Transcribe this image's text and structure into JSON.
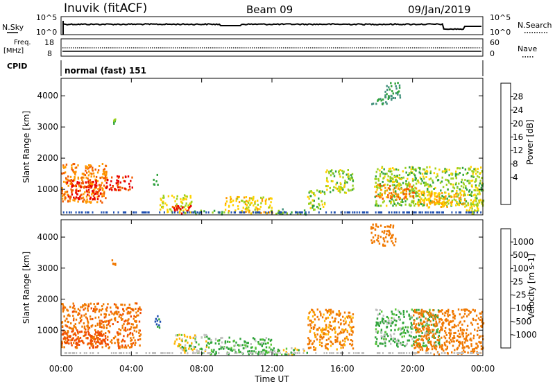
{
  "header": {
    "station": "Inuvik (fitACF)",
    "beam": "Beam 09",
    "date": "09/Jan/2019"
  },
  "sky_panel": {
    "left_label": "N.Sky",
    "right_label": "N.Search",
    "tick_top": "10^5",
    "tick_bottom": "10^0"
  },
  "freq_panel": {
    "left_label_1": "Freq.",
    "left_label_2": "[MHz]",
    "left_tick_top": "18",
    "left_tick_bottom": "8",
    "right_label": "Nave",
    "right_tick_top": "60",
    "right_tick_bottom": "0"
  },
  "cpid_panel": {
    "label": "CPID",
    "value": "normal (fast) 151"
  },
  "chart_data": [
    {
      "type": "heatmap",
      "name": "power",
      "ylabel": "Slant Range [km]",
      "colorbar_label": "Power [dB]",
      "colorbar_ticks": [
        "28",
        "24",
        "20",
        "16",
        "12",
        "8",
        "4"
      ],
      "colors": [
        "#e80000",
        "#f25a00",
        "#ff9a00",
        "#ffd200",
        "#9bd11f",
        "#2fa33a",
        "#3f8f7a",
        "#1f4fb0",
        "#1530ff"
      ],
      "y_ticks": [
        "1000",
        "2000",
        "3000",
        "4000"
      ],
      "ylim": [
        180,
        4560
      ],
      "regions": [
        {
          "x0": 0.0,
          "x1": 2.6,
          "y0": 600,
          "y1": 1850,
          "value": 24
        },
        {
          "x0": 0.3,
          "x1": 2.3,
          "y0": 700,
          "y1": 1300,
          "value": 30
        },
        {
          "x0": 2.4,
          "x1": 4.1,
          "y0": 1000,
          "y1": 1450,
          "value": 28
        },
        {
          "x0": 2.8,
          "x1": 3.1,
          "y0": 3100,
          "y1": 3300,
          "value": 12
        },
        {
          "x0": 5.2,
          "x1": 5.5,
          "y0": 1150,
          "y1": 1500,
          "value": 10
        },
        {
          "x0": 5.6,
          "x1": 7.4,
          "y0": 250,
          "y1": 850,
          "value": 16
        },
        {
          "x0": 6.3,
          "x1": 7.4,
          "y0": 250,
          "y1": 500,
          "value": 28
        },
        {
          "x0": 7.4,
          "x1": 9.3,
          "y0": 220,
          "y1": 350,
          "value": 10
        },
        {
          "x0": 9.3,
          "x1": 12.0,
          "y0": 250,
          "y1": 800,
          "value": 18
        },
        {
          "x0": 12.0,
          "x1": 14.0,
          "y0": 220,
          "y1": 400,
          "value": 10
        },
        {
          "x0": 14.0,
          "x1": 15.0,
          "y0": 350,
          "y1": 1000,
          "value": 14
        },
        {
          "x0": 15.0,
          "x1": 16.6,
          "y0": 900,
          "y1": 1650,
          "value": 14
        },
        {
          "x0": 17.6,
          "x1": 18.6,
          "y0": 3750,
          "y1": 3950,
          "value": 8
        },
        {
          "x0": 18.4,
          "x1": 19.3,
          "y0": 3900,
          "y1": 4450,
          "value": 8
        },
        {
          "x0": 17.8,
          "x1": 24.0,
          "y0": 500,
          "y1": 1750,
          "value": 14
        },
        {
          "x0": 17.8,
          "x1": 20.2,
          "y0": 700,
          "y1": 1200,
          "value": 24
        },
        {
          "x0": 20.2,
          "x1": 23.0,
          "y0": 450,
          "y1": 1000,
          "value": 20
        },
        {
          "x0": 23.0,
          "x1": 24.0,
          "y0": 250,
          "y1": 700,
          "value": 16
        }
      ]
    },
    {
      "type": "heatmap",
      "name": "velocity",
      "ylabel": "Slant Range [km]",
      "colorbar_label": "Velocity [m s-1]",
      "colorbar_ticks": [
        "1000",
        "500",
        "100",
        "25",
        "-25",
        "-100",
        "-500",
        "-1000"
      ],
      "colors": [
        "#1530ff",
        "#1f4fb0",
        "#2fa33a",
        "#5dc83a",
        "#c0c0c0",
        "#ffb400",
        "#f07800",
        "#f04a00",
        "#e80000"
      ],
      "y_ticks": [
        "1000",
        "2000",
        "3000",
        "4000"
      ],
      "ylim": [
        180,
        4560
      ],
      "xlabel": "Time UT",
      "x_ticks": [
        "00:00",
        "04:00",
        "08:00",
        "12:00",
        "16:00",
        "20:00",
        "00:00"
      ],
      "xlim": [
        0,
        24
      ],
      "regions": [
        {
          "x0": 0.0,
          "x1": 4.5,
          "y0": 450,
          "y1": 1900,
          "value": -250
        },
        {
          "x0": 0.0,
          "x1": 2.5,
          "y0": 600,
          "y1": 1000,
          "value": -500
        },
        {
          "x0": 2.8,
          "x1": 3.1,
          "y0": 3100,
          "y1": 3300,
          "value": -200
        },
        {
          "x0": 5.3,
          "x1": 5.6,
          "y0": 1100,
          "y1": 1500,
          "value": 300
        },
        {
          "x0": 6.4,
          "x1": 8.3,
          "y0": 280,
          "y1": 900,
          "value": 0
        },
        {
          "x0": 8.3,
          "x1": 12.0,
          "y0": 250,
          "y1": 800,
          "value": 80
        },
        {
          "x0": 12.0,
          "x1": 14.0,
          "y0": 220,
          "y1": 450,
          "value": 40
        },
        {
          "x0": 14.0,
          "x1": 16.6,
          "y0": 400,
          "y1": 1700,
          "value": -150
        },
        {
          "x0": 17.6,
          "x1": 19.0,
          "y0": 3750,
          "y1": 4450,
          "value": -200
        },
        {
          "x0": 17.8,
          "x1": 21.5,
          "y0": 500,
          "y1": 1700,
          "value": 80
        },
        {
          "x0": 20.0,
          "x1": 24.0,
          "y0": 250,
          "y1": 1700,
          "value": -200
        }
      ]
    }
  ]
}
